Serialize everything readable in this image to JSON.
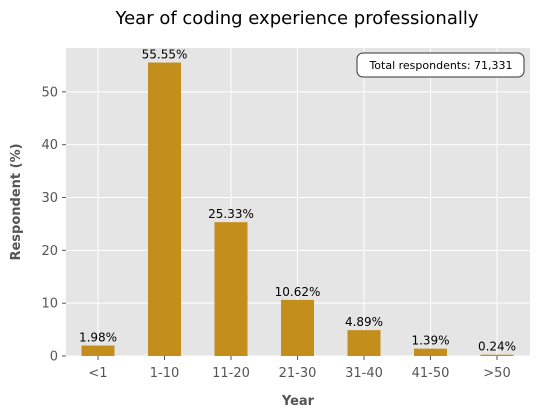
{
  "chart_data": {
    "type": "bar",
    "title": "Year of coding experience professionally",
    "xlabel": "Year",
    "ylabel": "Respondent (%)",
    "categories": [
      "<1",
      "1-10",
      "11-20",
      "21-30",
      "31-40",
      "41-50",
      ">50"
    ],
    "values": [
      1.98,
      55.55,
      25.33,
      10.62,
      4.89,
      1.39,
      0.24
    ],
    "data_labels": [
      "1.98%",
      "55.55%",
      "25.33%",
      "10.62%",
      "4.89%",
      "1.39%",
      "0.24%"
    ],
    "yticks": [
      0,
      10,
      20,
      30,
      40,
      50
    ],
    "ylim": [
      0,
      58.3
    ],
    "grid": true,
    "annotation": "Total respondents: 71,331",
    "annotation_position": "top-right",
    "colors": {
      "bar": "#C48E1C",
      "plot_background": "#E5E5E5",
      "grid": "#FFFFFF",
      "tick_text": "#555555"
    }
  }
}
